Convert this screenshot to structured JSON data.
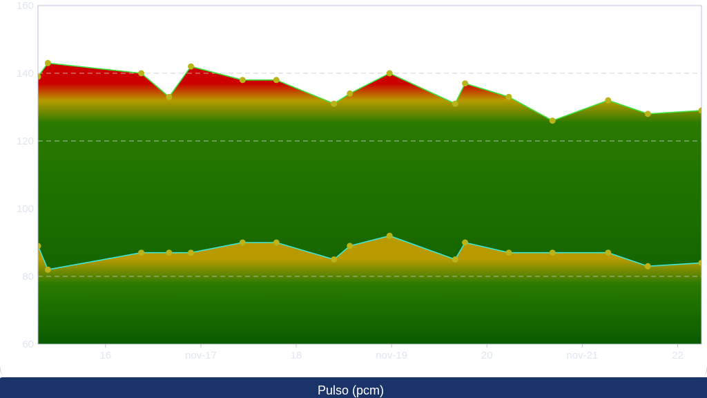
{
  "colors": {
    "panel_bg": "#1a3368",
    "systolic_line": "#3ee23a",
    "diastolic_line": "#3ee8d8",
    "point": "#b8b41a",
    "fill_high": "#cc0000",
    "fill_mid": "#b89a00",
    "fill_low": "#2a7a00",
    "fill_bottom": "#0a5a00",
    "grid": "#c8c8c8"
  },
  "footer": {
    "label": "Pulso (pcm)"
  },
  "chart_data": {
    "type": "area",
    "x_axis": {
      "type": "date",
      "range": [
        "2015-11-15T07:00",
        "2015-11-22T06:00"
      ],
      "ticks": [
        {
          "value": "2015-11-16T00:00",
          "label": "16"
        },
        {
          "value": "2015-11-17T00:00",
          "label": "nov-17"
        },
        {
          "value": "2015-11-18T00:00",
          "label": "18"
        },
        {
          "value": "2015-11-19T00:00",
          "label": "nov-19"
        },
        {
          "value": "2015-11-20T00:00",
          "label": "20"
        },
        {
          "value": "2015-11-21T00:00",
          "label": "nov-21"
        },
        {
          "value": "2015-11-22T00:00",
          "label": "22"
        }
      ]
    },
    "y_axis": {
      "range": [
        60,
        160
      ],
      "ticks": [
        60,
        80,
        100,
        120,
        140,
        160
      ],
      "gridlines_dashed": [
        80,
        120,
        140
      ]
    },
    "series": [
      {
        "points": [
          {
            "x": "2015-11-15T07:00",
            "y": 139
          },
          {
            "x": "2015-11-15T09:30",
            "y": 143
          },
          {
            "x": "2015-11-16T09:00",
            "y": 140
          },
          {
            "x": "2015-11-16T16:00",
            "y": 133
          },
          {
            "x": "2015-11-16T21:30",
            "y": 142
          },
          {
            "x": "2015-11-17T10:30",
            "y": 138
          },
          {
            "x": "2015-11-17T19:00",
            "y": 138
          },
          {
            "x": "2015-11-18T09:30",
            "y": 131
          },
          {
            "x": "2015-11-18T13:30",
            "y": 134
          },
          {
            "x": "2015-11-18T23:30",
            "y": 140
          },
          {
            "x": "2015-11-19T16:00",
            "y": 131
          },
          {
            "x": "2015-11-19T18:30",
            "y": 137
          },
          {
            "x": "2015-11-20T05:30",
            "y": 133
          },
          {
            "x": "2015-11-20T16:30",
            "y": 126
          },
          {
            "x": "2015-11-21T06:30",
            "y": 132
          },
          {
            "x": "2015-11-21T16:30",
            "y": 128
          },
          {
            "x": "2015-11-22T06:00",
            "y": 129
          }
        ]
      },
      {
        "points": [
          {
            "x": "2015-11-15T07:00",
            "y": 89
          },
          {
            "x": "2015-11-15T09:30",
            "y": 82
          },
          {
            "x": "2015-11-16T09:00",
            "y": 87
          },
          {
            "x": "2015-11-16T16:00",
            "y": 87
          },
          {
            "x": "2015-11-16T21:30",
            "y": 87
          },
          {
            "x": "2015-11-17T10:30",
            "y": 90
          },
          {
            "x": "2015-11-17T19:00",
            "y": 90
          },
          {
            "x": "2015-11-18T09:30",
            "y": 85
          },
          {
            "x": "2015-11-18T13:30",
            "y": 89
          },
          {
            "x": "2015-11-18T23:30",
            "y": 92
          },
          {
            "x": "2015-11-19T16:00",
            "y": 85
          },
          {
            "x": "2015-11-19T18:30",
            "y": 90
          },
          {
            "x": "2015-11-20T05:30",
            "y": 87
          },
          {
            "x": "2015-11-20T16:30",
            "y": 87
          },
          {
            "x": "2015-11-21T06:30",
            "y": 87
          },
          {
            "x": "2015-11-21T16:30",
            "y": 83
          },
          {
            "x": "2015-11-22T06:00",
            "y": 84
          }
        ]
      }
    ]
  }
}
